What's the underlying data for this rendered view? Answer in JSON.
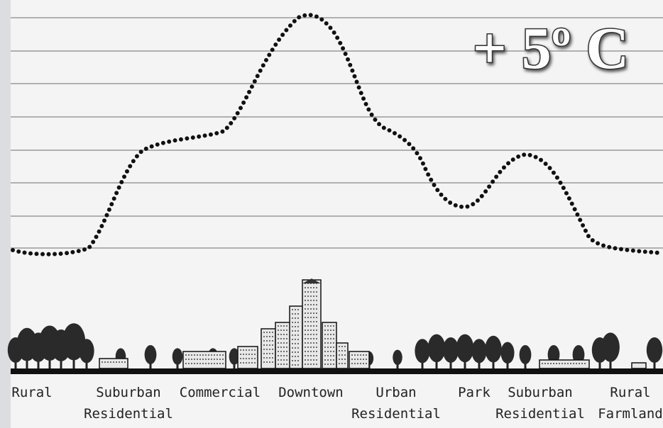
{
  "annotation": "+ 5º C",
  "zones": [
    {
      "lines": [
        "Rural"
      ]
    },
    {
      "lines": [
        "Suburban",
        "Residential"
      ]
    },
    {
      "lines": [
        "Commercial"
      ]
    },
    {
      "lines": [
        "Downtown"
      ]
    },
    {
      "lines": [
        "Urban",
        "Residential"
      ]
    },
    {
      "lines": [
        "Park"
      ]
    },
    {
      "lines": [
        "Suburban",
        "Residential"
      ]
    },
    {
      "lines": [
        "Rural",
        "Farmland"
      ]
    }
  ]
}
